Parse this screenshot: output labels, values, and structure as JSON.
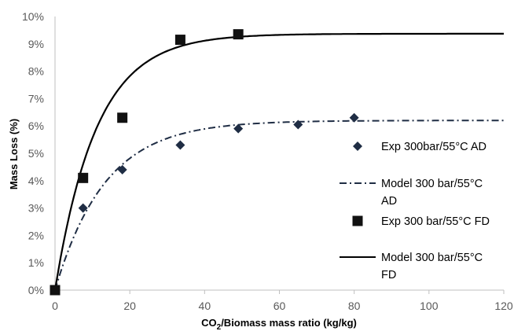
{
  "chart_data": {
    "type": "scatter",
    "xlabel": "CO2/Biomass mass ratio (kg/kg)",
    "ylabel": "Mass Loss (%)",
    "xlim": [
      0,
      120
    ],
    "ylim": [
      0,
      10
    ],
    "x_ticks": [
      "0",
      "20",
      "40",
      "60",
      "80",
      "100",
      "120"
    ],
    "y_ticks": [
      "0%",
      "1%",
      "2%",
      "3%",
      "4%",
      "5%",
      "6%",
      "7%",
      "8%",
      "9%",
      "10%"
    ],
    "grid": false,
    "legend_position": "right",
    "series": [
      {
        "name": "Exp 300bar/55°C AD",
        "kind": "markers",
        "marker": "diamond",
        "color": "#1f2d44",
        "points": [
          [
            0,
            0
          ],
          [
            7.5,
            3.0
          ],
          [
            18,
            4.4
          ],
          [
            33.5,
            5.3
          ],
          [
            49,
            5.9
          ],
          [
            65,
            6.05
          ],
          [
            80,
            6.3
          ]
        ]
      },
      {
        "name": "Model 300 bar/55°C AD",
        "kind": "line",
        "dash": "dash-dot",
        "color": "#1f2d44",
        "model": {
          "asymptote": 6.2,
          "rate": 0.075
        },
        "x_range": [
          0,
          120
        ]
      },
      {
        "name": "Exp 300 bar/55°C FD",
        "kind": "markers",
        "marker": "square",
        "color": "#111111",
        "points": [
          [
            0,
            0
          ],
          [
            7.5,
            4.1
          ],
          [
            18,
            6.3
          ],
          [
            33.5,
            9.15
          ],
          [
            49,
            9.35
          ]
        ]
      },
      {
        "name": "Model 300 bar/55°C FD",
        "kind": "line",
        "dash": "solid",
        "color": "#000000",
        "model": {
          "asymptote": 9.37,
          "rate": 0.09
        },
        "x_range": [
          0,
          120
        ]
      }
    ],
    "legend": [
      {
        "lines": [
          "Exp 300bar/55°C AD"
        ]
      },
      {
        "lines": [
          "Model 300 bar/55°C",
          "AD"
        ]
      },
      {
        "lines": [
          "Exp 300 bar/55°C FD"
        ]
      },
      {
        "lines": [
          "Model 300 bar/55°C",
          "FD"
        ]
      }
    ]
  }
}
